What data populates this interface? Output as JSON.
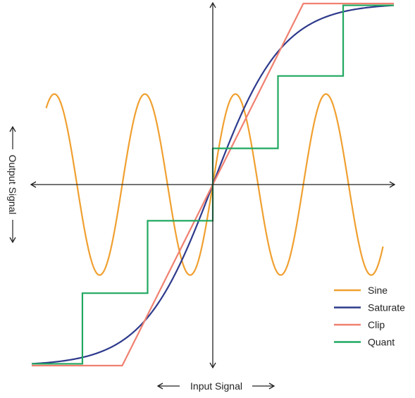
{
  "chart_data": {
    "type": "line",
    "xlabel": "Input Signal",
    "ylabel": "Output Signal",
    "xlim": [
      -1,
      1
    ],
    "ylim": [
      -1,
      1
    ],
    "grid": false,
    "legend_position": "bottom-right",
    "axis_arrows": true,
    "series": [
      {
        "name": "Sine",
        "color": "#F0A030",
        "type": "line",
        "amplitude": 0.5,
        "frequency": 4,
        "x": [
          -1.0,
          -0.95,
          -0.9,
          -0.85,
          -0.8,
          -0.75,
          -0.7,
          -0.65,
          -0.6,
          -0.55,
          -0.5,
          -0.45,
          -0.4,
          -0.35,
          -0.3,
          -0.25,
          -0.2,
          -0.15,
          -0.1,
          -0.05,
          0.0,
          0.05,
          0.1,
          0.15,
          0.2,
          0.25,
          0.3,
          0.35,
          0.4,
          0.45,
          0.5,
          0.55,
          0.6,
          0.65,
          0.7,
          0.75,
          0.8,
          0.85,
          0.9,
          0.95,
          1.0
        ],
        "y": [
          0.0,
          0.35,
          0.5,
          0.35,
          0.0,
          -0.35,
          -0.5,
          -0.35,
          0.0,
          0.35,
          0.5,
          0.35,
          0.0,
          -0.35,
          -0.5,
          -0.35,
          0.0,
          0.35,
          0.5,
          0.35,
          0.0,
          -0.35,
          -0.5,
          -0.35,
          0.0,
          0.35,
          0.5,
          0.35,
          0.0,
          -0.35,
          -0.5,
          -0.35,
          0.0,
          0.35,
          0.5,
          0.35,
          0.0,
          -0.35,
          -0.5,
          -0.35,
          0.0
        ]
      },
      {
        "name": "Saturate",
        "color": "#2E3A8C",
        "type": "line",
        "x": [
          -1.0,
          -0.9,
          -0.8,
          -0.7,
          -0.6,
          -0.5,
          -0.4,
          -0.3,
          -0.2,
          -0.1,
          0.0,
          0.1,
          0.2,
          0.3,
          0.4,
          0.5,
          0.6,
          0.7,
          0.8,
          0.9,
          1.0
        ],
        "y": [
          -0.99,
          -0.97,
          -0.93,
          -0.87,
          -0.79,
          -0.68,
          -0.55,
          -0.41,
          -0.28,
          -0.14,
          0.0,
          0.14,
          0.28,
          0.41,
          0.55,
          0.68,
          0.79,
          0.87,
          0.93,
          0.97,
          0.99
        ]
      },
      {
        "name": "Clip",
        "color": "#F08070",
        "type": "line",
        "x": [
          -1.0,
          -0.5,
          0.5,
          1.0
        ],
        "y": [
          -1.0,
          -1.0,
          1.0,
          1.0
        ]
      },
      {
        "name": "Quant",
        "color": "#20A860",
        "type": "step",
        "x": [
          -1.0,
          -0.72,
          -0.72,
          -0.36,
          -0.36,
          0.0,
          0.0,
          0.36,
          0.36,
          0.72,
          0.72,
          1.0
        ],
        "y": [
          -0.99,
          -0.99,
          -0.6,
          -0.6,
          -0.2,
          -0.2,
          0.2,
          0.2,
          0.6,
          0.6,
          0.99,
          0.99
        ]
      }
    ]
  }
}
